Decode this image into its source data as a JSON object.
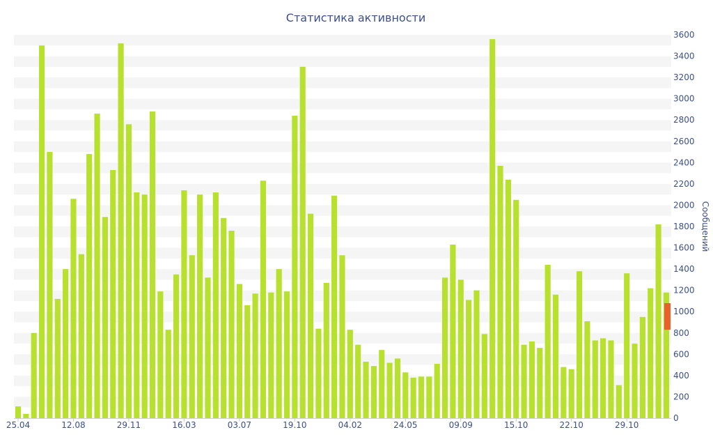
{
  "chart_data": {
    "type": "bar",
    "title": "Статистика активности",
    "xlabel": "",
    "ylabel": "Сообщений",
    "ylim": [
      0,
      3600
    ],
    "yticks": [
      0,
      200,
      400,
      600,
      800,
      1000,
      1200,
      1400,
      1600,
      1800,
      2000,
      2200,
      2400,
      2600,
      2800,
      3000,
      3200,
      3400,
      3600
    ],
    "y_axis_side": "right",
    "grid": "alternating horizontal bands",
    "legend": "none",
    "colors": {
      "bar": "#b8e02e",
      "highlight": "#e8622a",
      "text": "#3b4f8c",
      "band": "#f5f5f5"
    },
    "x_tick_labels": [
      {
        "label": "25.04",
        "index": 0
      },
      {
        "label": "12.08",
        "index": 7
      },
      {
        "label": "29.11",
        "index": 14
      },
      {
        "label": "16.03",
        "index": 21
      },
      {
        "label": "03.07",
        "index": 28
      },
      {
        "label": "19.10",
        "index": 35
      },
      {
        "label": "04.02",
        "index": 42
      },
      {
        "label": "24.05",
        "index": 49
      },
      {
        "label": "09.09",
        "index": 56
      },
      {
        "label": "15.10",
        "index": 63
      },
      {
        "label": "22.10",
        "index": 70
      },
      {
        "label": "29.10",
        "index": 77
      }
    ],
    "values": [
      110,
      40,
      800,
      3500,
      2500,
      1120,
      1400,
      2060,
      1540,
      2480,
      2860,
      1890,
      2330,
      3520,
      2760,
      2120,
      2100,
      2880,
      1190,
      830,
      1350,
      2140,
      1530,
      2100,
      1320,
      2120,
      1880,
      1760,
      1260,
      1060,
      1170,
      2230,
      1180,
      1400,
      1190,
      2840,
      3300,
      1920,
      840,
      1270,
      2090,
      1530,
      830,
      690,
      530,
      490,
      640,
      520,
      560,
      430,
      380,
      390,
      390,
      510,
      1320,
      1630,
      1300,
      1110,
      1200,
      790,
      3560,
      2370,
      2240,
      2050,
      690,
      720,
      660,
      1440,
      1160,
      480,
      460,
      1380,
      910,
      730,
      750,
      730,
      310,
      1360,
      700,
      950,
      1220,
      1820,
      1180
    ],
    "highlight_bar": {
      "from": 830,
      "to": 1080
    }
  }
}
